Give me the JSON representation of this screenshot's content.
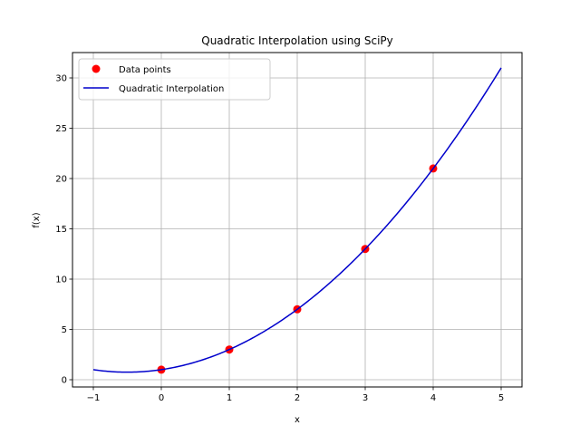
{
  "chart_data": {
    "type": "line",
    "title": "Quadratic Interpolation using SciPy",
    "xlabel": "x",
    "ylabel": "f(x)",
    "xlim": [
      -1.3,
      5.3
    ],
    "ylim": [
      -0.7,
      32.5
    ],
    "grid": true,
    "legend_position": "upper left",
    "x_ticks": [
      "−1",
      "0",
      "1",
      "2",
      "3",
      "4",
      "5"
    ],
    "x_tick_values": [
      -1,
      0,
      1,
      2,
      3,
      4,
      5
    ],
    "y_ticks": [
      "0",
      "5",
      "10",
      "15",
      "20",
      "25",
      "30"
    ],
    "y_tick_values": [
      0,
      5,
      10,
      15,
      20,
      25,
      30
    ],
    "series": [
      {
        "name": "Data points",
        "type": "scatter",
        "color": "#ff0000",
        "x": [
          0,
          1,
          2,
          3,
          4
        ],
        "y": [
          1,
          3,
          7,
          13,
          21
        ]
      },
      {
        "name": "Quadratic Interpolation",
        "type": "line",
        "color": "#0000cc",
        "function": "x^2 + x + 1",
        "x_range": [
          -1,
          5
        ],
        "x": [
          -1,
          -0.5,
          0,
          0.5,
          1,
          1.5,
          2,
          2.5,
          3,
          3.5,
          4,
          4.5,
          5
        ],
        "y": [
          1,
          0.75,
          1,
          1.75,
          3,
          4.75,
          7,
          9.75,
          13,
          16.75,
          21,
          25.75,
          31
        ]
      }
    ]
  },
  "legend": {
    "items": [
      {
        "label": "Data points"
      },
      {
        "label": "Quadratic Interpolation"
      }
    ]
  }
}
